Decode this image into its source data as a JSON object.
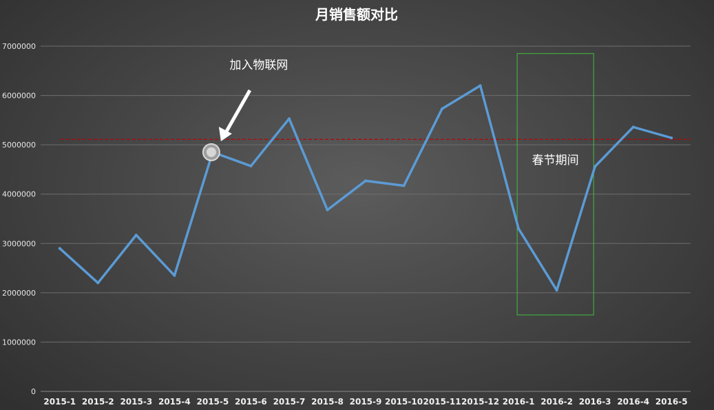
{
  "chart_data": {
    "type": "line",
    "title": "月销售额对比",
    "xlabel": "",
    "ylabel": "",
    "ylim": [
      0,
      7000000
    ],
    "y_ticks": [
      "0",
      "1000000",
      "2000000",
      "3000000",
      "4000000",
      "5000000",
      "6000000",
      "7000000"
    ],
    "grid": true,
    "categories": [
      "2015-1",
      "2015-2",
      "2015-3",
      "2015-4",
      "2015-5",
      "2015-6",
      "2015-7",
      "2015-8",
      "2015-9",
      "2015-10",
      "2015-11",
      "2015-12",
      "2016-1",
      "2016-2",
      "2016-3",
      "2016-4",
      "2016-5"
    ],
    "series": [
      {
        "values": [
          2900000,
          2200000,
          3170000,
          2350000,
          4850000,
          4570000,
          5530000,
          3680000,
          4270000,
          4170000,
          5730000,
          6200000,
          3300000,
          2050000,
          4560000,
          5360000,
          5140000
        ],
        "color": "#5b9bd5"
      }
    ],
    "reference_line": {
      "value": 5110000,
      "color": "#c00000",
      "style": "dashed"
    },
    "highlight_point": {
      "category": "2015-5",
      "value": 4850000
    },
    "annotations": [
      {
        "text": "加入物联网",
        "category": "2015-5",
        "arrow": true
      },
      {
        "text": "春节期间",
        "range": [
          "2016-1",
          "2016-3"
        ],
        "box_top": 6850000,
        "box_bottom": 1550000,
        "box_color": "#3fbf3f"
      }
    ],
    "colors": {
      "line": "#5b9bd5",
      "grid": "#6e6e6e",
      "reference": "#c00000",
      "box": "#3fbf3f",
      "text": "#ffffff"
    }
  }
}
